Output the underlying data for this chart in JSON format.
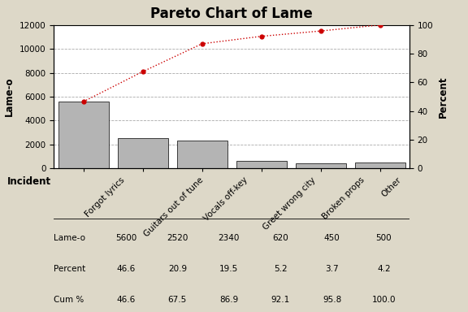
{
  "title": "Pareto Chart of Lame",
  "categories": [
    "Forgot lyrics",
    "Guitars out of tune",
    "Vocals off-key",
    "Greet wrong city",
    "Broken props",
    "Other"
  ],
  "values": [
    5600,
    2520,
    2340,
    620,
    450,
    500
  ],
  "cum_pct": [
    46.6,
    67.5,
    86.9,
    92.1,
    95.8,
    100.0
  ],
  "bar_color": "#b4b4b4",
  "bar_edge_color": "#222222",
  "line_color": "#cc0000",
  "bg_color": "#ddd8c8",
  "plot_bg_color": "#ffffff",
  "ylabel_left": "Lame-o",
  "ylabel_right": "Percent",
  "xlabel": "Incident",
  "ylim_left": [
    0,
    12000
  ],
  "ylim_right": [
    0,
    100
  ],
  "yticks_left": [
    0,
    2000,
    4000,
    6000,
    8000,
    10000,
    12000
  ],
  "yticks_right": [
    0,
    20,
    40,
    60,
    80,
    100
  ],
  "grid_color": "#aaaaaa",
  "table_rows": [
    "Lame-o",
    "Percent",
    "Cum %"
  ],
  "table_vals_lameo": [
    "5600",
    "2520",
    "2340",
    "620",
    "450",
    "500"
  ],
  "table_vals_pct": [
    "46.6",
    "20.9",
    "19.5",
    "5.2",
    "3.7",
    "4.2"
  ],
  "table_vals_cum": [
    "46.6",
    "67.5",
    "86.9",
    "92.1",
    "95.8",
    "100.0"
  ],
  "title_fontsize": 12,
  "axis_label_fontsize": 8.5,
  "tick_fontsize": 7.5,
  "table_fontsize": 7.5
}
